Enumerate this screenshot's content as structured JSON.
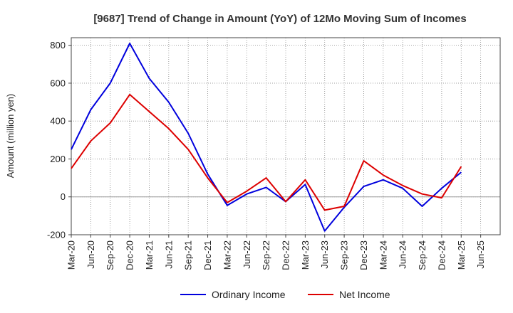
{
  "chart_data": {
    "type": "line",
    "title": "[9687]  Trend of Change in Amount (YoY) of 12Mo Moving Sum of Incomes",
    "xlabel": "",
    "ylabel": "Amount (million yen)",
    "ylim": [
      -200,
      840
    ],
    "yticks": [
      -200,
      0,
      200,
      400,
      600,
      800
    ],
    "ytick_labels": [
      "-200",
      "0",
      "200",
      "400",
      "600",
      "800"
    ],
    "categories": [
      "Mar-20",
      "Jun-20",
      "Sep-20",
      "Dec-20",
      "Mar-21",
      "Jun-21",
      "Sep-21",
      "Dec-21",
      "Mar-22",
      "Jun-22",
      "Sep-22",
      "Dec-22",
      "Mar-23",
      "Jun-23",
      "Sep-23",
      "Dec-23",
      "Mar-24",
      "Jun-24",
      "Sep-24",
      "Dec-24",
      "Mar-25",
      "Jun-25"
    ],
    "grid": true,
    "legend_position": "bottom",
    "series": [
      {
        "name": "Ordinary Income",
        "color": "#0000dd",
        "values": [
          250,
          460,
          600,
          810,
          625,
          500,
          335,
          120,
          -45,
          15,
          50,
          -25,
          65,
          -180,
          -55,
          55,
          90,
          45,
          -50,
          45,
          130,
          null
        ]
      },
      {
        "name": "Net Income",
        "color": "#dd0000",
        "values": [
          150,
          295,
          390,
          540,
          450,
          360,
          250,
          100,
          -30,
          30,
          100,
          -25,
          90,
          -70,
          -50,
          190,
          115,
          60,
          15,
          -5,
          160,
          null
        ]
      }
    ]
  }
}
